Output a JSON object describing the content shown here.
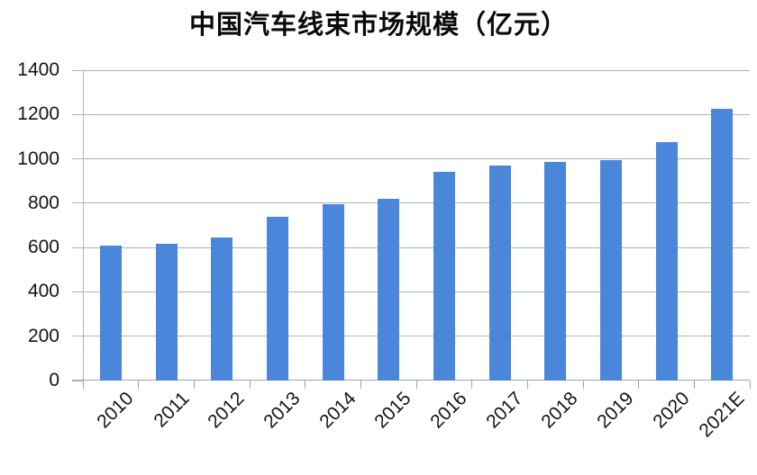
{
  "chart_data": {
    "type": "bar",
    "title": "中国汽车线束市场规模（亿元）",
    "categories": [
      "2010",
      "2011",
      "2012",
      "2013",
      "2014",
      "2015",
      "2016",
      "2017",
      "2018",
      "2019",
      "2020",
      "2021E"
    ],
    "values": [
      610,
      615,
      645,
      740,
      795,
      820,
      940,
      970,
      985,
      995,
      1075,
      1225
    ],
    "xlabel": "",
    "ylabel": "",
    "ylim": [
      0,
      1400
    ],
    "ytick_step": 200,
    "ytick_labels": [
      "0",
      "200",
      "400",
      "600",
      "800",
      "1000",
      "1200",
      "1400"
    ],
    "grid": true,
    "legend_position": "none",
    "bar_color": "#4a86d9",
    "gridline_color": "#a6b3bb",
    "axis_color": "#a3bac6",
    "text_color": "#141414"
  }
}
